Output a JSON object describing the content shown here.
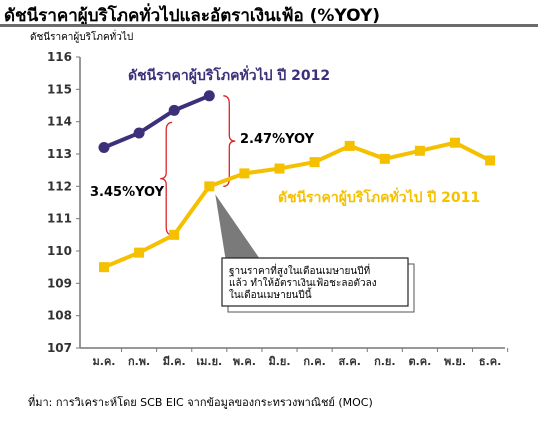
{
  "header": {
    "title": "ดัชนีราคาผู้บริโภคทั่วไปและอัตราเงินเฟ้อ (%YOY)",
    "y_unit_label": "ดัชนีราคาผู้บริโภคทั่วไป"
  },
  "source": "ที่มา:  การวิเคราะห์โดย SCB EIC จากข้อมูลของกระทรวงพาณิชย์ (MOC)",
  "chart_data": {
    "type": "line",
    "categories": [
      "ม.ค.",
      "ก.พ.",
      "มี.ค.",
      "เม.ย.",
      "พ.ค.",
      "มิ.ย.",
      "ก.ค.",
      "ส.ค.",
      "ก.ย.",
      "ต.ค.",
      "พ.ย.",
      "ธ.ค."
    ],
    "ylim": [
      107,
      116
    ],
    "yticks": [
      107,
      108,
      109,
      110,
      111,
      112,
      113,
      114,
      115,
      116
    ],
    "grid": false,
    "series": [
      {
        "name": "ดัชนีราคาผู้บริโภคทั่วไป ปี 2012",
        "color": "#3d2f7a",
        "values": [
          113.2,
          113.65,
          114.35,
          114.8,
          null,
          null,
          null,
          null,
          null,
          null,
          null,
          null
        ]
      },
      {
        "name": "ดัชนีราคาผู้บริโภคทั่วไป ปี 2011",
        "color": "#f5c000",
        "values": [
          109.5,
          109.95,
          110.5,
          112.0,
          112.4,
          112.55,
          112.75,
          113.25,
          112.85,
          113.1,
          113.35,
          112.8
        ]
      }
    ],
    "annotations": {
      "yoy_2012": "2.47%YOY",
      "yoy_2011": "3.45%YOY",
      "callout": [
        "ฐานราคาที่สูงในเดือนเมษายนปีที่",
        "แล้ว ทำให้อัตราเงินเฟ้อชะลอตัวลง",
        "ในเดือนเมษายนปีนี้"
      ]
    }
  }
}
